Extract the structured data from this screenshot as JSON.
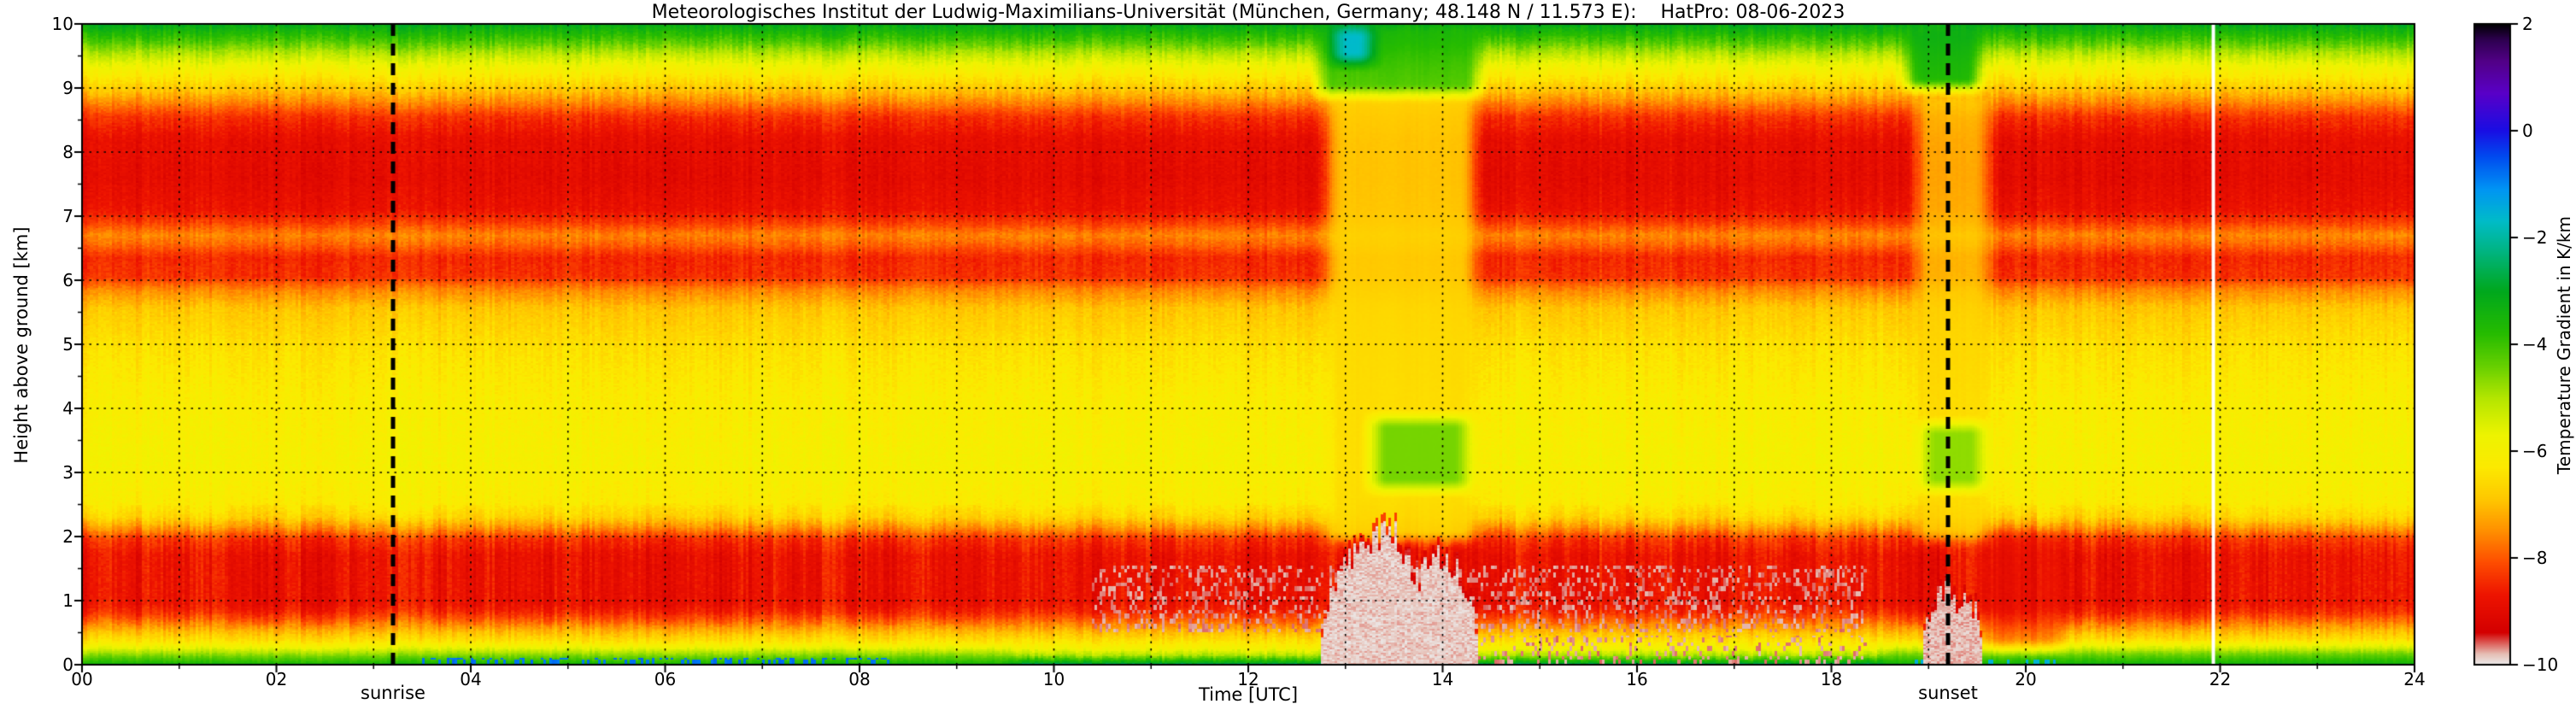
{
  "title": "Meteorologisches Institut der Ludwig-Maximilians-Universität (München, Germany; 48.148 N / 11.573 E):    HatPro: 08-06-2023",
  "axes": {
    "xlabel": "Time [UTC]",
    "ylabel": "Height above ground [km]",
    "x_range": [
      0,
      24
    ],
    "y_range": [
      0,
      10
    ],
    "x_tick_labels": [
      "00",
      "02",
      "04",
      "06",
      "08",
      "10",
      "12",
      "14",
      "16",
      "18",
      "20",
      "22",
      "24"
    ],
    "y_tick_labels": [
      "0",
      "1",
      "2",
      "3",
      "4",
      "5",
      "6",
      "7",
      "8",
      "9",
      "10"
    ],
    "grid": "dotted black, hourly vertical and 1-km horizontal"
  },
  "colorbar": {
    "label": "Temperature Gradient in K/km",
    "range": [
      -10,
      2
    ],
    "ticks": [
      {
        "value": 2,
        "label": "2"
      },
      {
        "value": 0,
        "label": "0"
      },
      {
        "value": -2,
        "label": "−2"
      },
      {
        "value": -4,
        "label": "−4"
      },
      {
        "value": -6,
        "label": "−6"
      },
      {
        "value": -8,
        "label": "−8"
      },
      {
        "value": -10,
        "label": "−10"
      }
    ],
    "stops": [
      [
        -10.0,
        "#ececec"
      ],
      [
        -9.8,
        "#e6beb4"
      ],
      [
        -9.4,
        "#d40000"
      ],
      [
        -8.7,
        "#ee1400"
      ],
      [
        -8.1,
        "#fe4c00"
      ],
      [
        -7.5,
        "#ff9000"
      ],
      [
        -6.9,
        "#ffc800"
      ],
      [
        -6.3,
        "#fcea00"
      ],
      [
        -5.7,
        "#eef400"
      ],
      [
        -5.0,
        "#b4e600"
      ],
      [
        -4.4,
        "#66d000"
      ],
      [
        -3.8,
        "#26bc00"
      ],
      [
        -3.0,
        "#00a81e"
      ],
      [
        -2.3,
        "#00b47c"
      ],
      [
        -1.7,
        "#00bcc8"
      ],
      [
        -1.1,
        "#0096f4"
      ],
      [
        -0.5,
        "#004cf0"
      ],
      [
        0.0,
        "#1a0ee4"
      ],
      [
        0.7,
        "#5a00c8"
      ],
      [
        1.3,
        "#520087"
      ],
      [
        1.7,
        "#2e0050"
      ],
      [
        2.0,
        "#000000"
      ]
    ]
  },
  "markers": {
    "sunrise": {
      "time": 3.2,
      "label": "sunrise",
      "line": "black dashed vertical"
    },
    "sunset": {
      "time": 19.2,
      "label": "sunset",
      "line": "black dashed vertical"
    }
  },
  "chart_data": {
    "type": "heatmap",
    "x_name": "Time [UTC] in hours",
    "y_name": "Height above ground [km]",
    "value_name": "Temperature Gradient in K/km",
    "x_range": [
      0,
      24
    ],
    "y_range": [
      0,
      10
    ],
    "value_range": [
      -10,
      2
    ],
    "base_profile": [
      [
        0.0,
        -2.4
      ],
      [
        0.03,
        -3.2
      ],
      [
        0.08,
        -4.0
      ],
      [
        0.15,
        -5.0
      ],
      [
        0.25,
        -5.9
      ],
      [
        0.38,
        -6.5
      ],
      [
        0.52,
        -7.1
      ],
      [
        0.68,
        -7.9
      ],
      [
        0.82,
        -8.5
      ],
      [
        0.95,
        -8.8
      ],
      [
        1.7,
        -8.8
      ],
      [
        1.95,
        -8.4
      ],
      [
        2.1,
        -7.6
      ],
      [
        2.3,
        -6.7
      ],
      [
        2.55,
        -6.2
      ],
      [
        3.2,
        -6.0
      ],
      [
        4.2,
        -6.2
      ],
      [
        5.0,
        -6.5
      ],
      [
        5.55,
        -6.9
      ],
      [
        5.85,
        -7.6
      ],
      [
        6.05,
        -8.4
      ],
      [
        6.35,
        -8.5
      ],
      [
        6.55,
        -7.9
      ],
      [
        6.7,
        -7.6
      ],
      [
        6.9,
        -8.3
      ],
      [
        7.1,
        -8.8
      ],
      [
        7.6,
        -9.0
      ],
      [
        8.2,
        -8.9
      ],
      [
        8.55,
        -8.4
      ],
      [
        8.75,
        -7.7
      ],
      [
        8.95,
        -7.0
      ],
      [
        9.15,
        -6.4
      ],
      [
        9.35,
        -5.8
      ],
      [
        9.55,
        -5.0
      ],
      [
        9.7,
        -4.3
      ],
      [
        9.85,
        -3.7
      ],
      [
        10.0,
        -3.1
      ]
    ],
    "events": [
      {
        "name": "midday-column-yellowing",
        "type": "soft",
        "t": [
          12.8,
          14.35
        ],
        "h": [
          1.9,
          8.95
        ],
        "value": -6.6,
        "strength": 0.85
      },
      {
        "name": "midday-green-patch",
        "type": "soft",
        "t": [
          13.25,
          14.3
        ],
        "h": [
          2.7,
          3.9
        ],
        "value": -4.3,
        "strength": 0.9
      },
      {
        "name": "midday-upper-green",
        "type": "soft",
        "t": [
          12.7,
          14.4
        ],
        "h": [
          8.85,
          10
        ],
        "value": -3.6,
        "strength": 0.8
      },
      {
        "name": "midday-top-cyan",
        "type": "soft",
        "t": [
          12.85,
          13.3
        ],
        "h": [
          9.35,
          10
        ],
        "value": -1.3,
        "strength": 0.85
      },
      {
        "name": "sunset-column-yellowing",
        "type": "soft",
        "t": [
          18.85,
          19.65
        ],
        "h": [
          1.9,
          8.95
        ],
        "value": -6.7,
        "strength": 0.75
      },
      {
        "name": "sunset-green-patch",
        "type": "soft",
        "t": [
          18.9,
          19.6
        ],
        "h": [
          2.7,
          3.8
        ],
        "value": -4.4,
        "strength": 0.85
      },
      {
        "name": "sunset-upper-green",
        "type": "soft",
        "t": [
          18.75,
          19.55
        ],
        "h": [
          8.95,
          10
        ],
        "value": -3.2,
        "strength": 0.85
      },
      {
        "name": "night-surface-green",
        "type": "soft",
        "t": [
          -0.3,
          9.6
        ],
        "h": [
          -0.2,
          0.26
        ],
        "value": -4.2,
        "strength": 0.55
      },
      {
        "name": "evening-surface-green",
        "type": "soft",
        "t": [
          18.5,
          24.3
        ],
        "h": [
          -0.2,
          0.3
        ],
        "value": -3.9,
        "strength": 0.6
      },
      {
        "name": "post-sunset-low-red",
        "type": "soft",
        "t": [
          19.55,
          20.4
        ],
        "h": [
          0.2,
          2.1
        ],
        "value": -8.9,
        "strength": 0.45
      },
      {
        "name": "morning-surface-blue-specks",
        "type": "speckle",
        "t": [
          3.5,
          8.3
        ],
        "h": [
          0,
          0.1
        ],
        "value": -0.8,
        "prob": 0.3,
        "seed": 11
      },
      {
        "name": "evening-surface-dark-specks",
        "type": "speckle",
        "t": [
          18.8,
          20.3
        ],
        "h": [
          0,
          0.09
        ],
        "value": -1.5,
        "prob": 0.3,
        "seed": 23
      },
      {
        "name": "afternoon-lifted-gray-specks",
        "type": "speckle",
        "t": [
          10.4,
          18.35
        ],
        "h": [
          0.5,
          1.55
        ],
        "value": -9.7,
        "prob": 0.26,
        "seed": 5
      },
      {
        "name": "afternoon-ground-gray-specks",
        "type": "speckle",
        "t": [
          14.3,
          18.35
        ],
        "h": [
          0,
          0.45
        ],
        "value": -9.7,
        "prob": 0.2,
        "seed": 9
      },
      {
        "name": "midday-gray-plume",
        "type": "plume",
        "t": [
          12.75,
          14.35
        ],
        "h": [
          0,
          2.05
        ],
        "value": -9.85
      },
      {
        "name": "sunset-gray-plume",
        "type": "plume",
        "t": [
          18.95,
          19.55
        ],
        "h": [
          0,
          1.15
        ],
        "value": -9.8
      }
    ],
    "missing_data_times": [
      21.93
    ],
    "noise": {
      "column": 0.4,
      "cell": 0.3,
      "meander": 0.5
    }
  }
}
